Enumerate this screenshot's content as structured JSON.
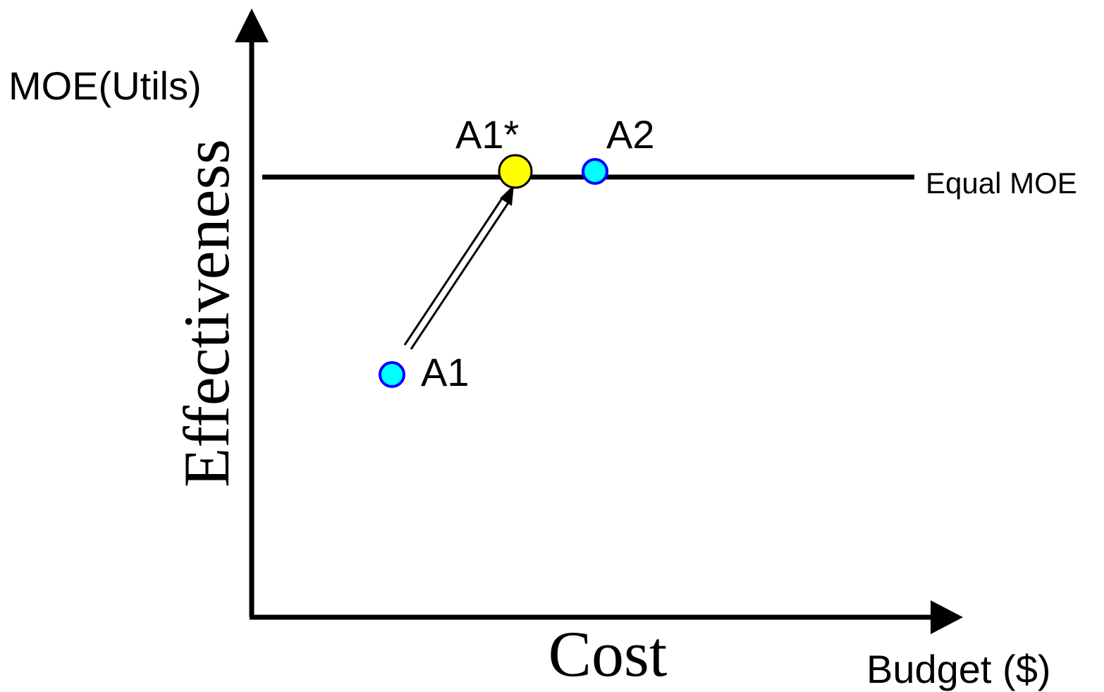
{
  "labels": {
    "y_unit": "MOE(Utils)",
    "y_title": "Effectiveness",
    "x_title": "Cost",
    "x_unit": "Budget ($)",
    "equal_line": "Equal MOE"
  },
  "points": {
    "a1": {
      "label": "A1",
      "fill": "#00FFFF",
      "stroke": "#0000FF"
    },
    "a1_star": {
      "label": "A1*",
      "fill": "#FFFF00",
      "stroke": "#000000"
    },
    "a2": {
      "label": "A2",
      "fill": "#00FFFF",
      "stroke": "#0000FF"
    }
  },
  "colors": {
    "axis": "#000000",
    "background": "#FFFFFF"
  }
}
